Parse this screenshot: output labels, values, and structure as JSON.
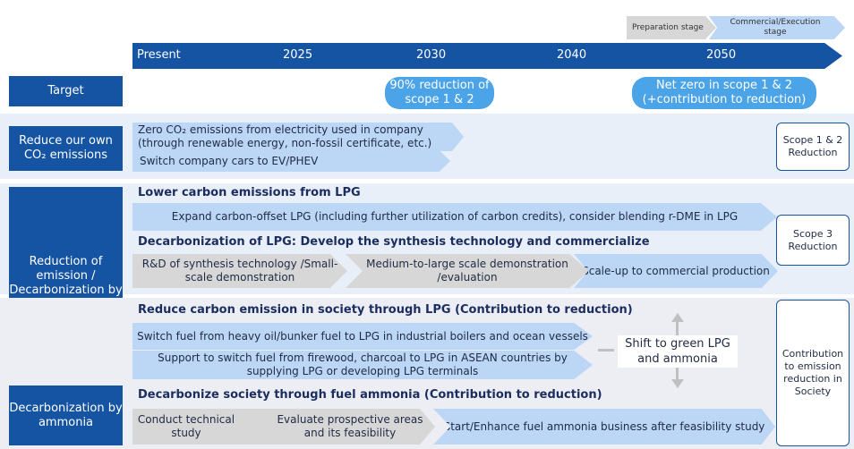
{
  "stages": {
    "preparation": "Preparation stage",
    "commercial": "Commercial/Execution stage"
  },
  "timeline": {
    "labels": [
      "Present",
      "2025",
      "2030",
      "2040",
      "2050"
    ]
  },
  "target": {
    "label": "Target",
    "goal_2030": "90% reduction of scope 1 & 2",
    "goal_2050": "Net zero in scope 1 & 2 (+contribution to reduction)"
  },
  "own_emissions": {
    "label": "Reduce our own CO₂ emissions",
    "item1": "Zero CO₂ emissions from electricity used in company (through renewable energy, non-fossil certificate, etc.)",
    "item2": "Switch company cars to EV/PHEV",
    "right_box": "Scope 1 & 2 Reduction"
  },
  "lpg": {
    "label": "Reduction of emission / Decarbonization by LPG",
    "lower_title": "Lower carbon emissions from LPG",
    "lower_item": "Expand carbon-offset LPG (including further utilization of carbon credits), consider blending r-DME in LPG",
    "decarb_title": "Decarbonization of LPG: Develop the synthesis technology and commercialize",
    "step1": "R&D of synthesis technology /Small-scale demonstration",
    "step2": "Medium-to-large scale demonstration /evaluation",
    "step3": "Scale-up to commercial production",
    "right_box": "Scope 3 Reduction"
  },
  "society": {
    "lpg_title": "Reduce carbon emission in society through LPG (Contribution to reduction)",
    "lpg_item1": "Switch fuel from heavy oil/bunker fuel to LPG in industrial boilers and ocean vessels",
    "lpg_item2": "Support to switch fuel from firewood, charcoal to LPG in ASEAN countries by supplying LPG or developing LPG terminals",
    "shift": "Shift to green LPG and ammonia",
    "right_box": "Contribution to emission reduction in Society"
  },
  "ammonia": {
    "label": "Decarbonization by ammonia",
    "title": "Decarbonize society through fuel ammonia (Contribution to reduction)",
    "step1": "Conduct technical study",
    "step2": "Evaluate prospective areas and its feasibility",
    "step3": "Start/Enhance fuel ammonia business after feasibility study"
  },
  "colors": {
    "navy": "#1553a3",
    "light_blue": "#bcd6f5",
    "pill_blue": "#4ba3e8",
    "gray": "#d7d7d7",
    "panel": "#e9eff8"
  }
}
